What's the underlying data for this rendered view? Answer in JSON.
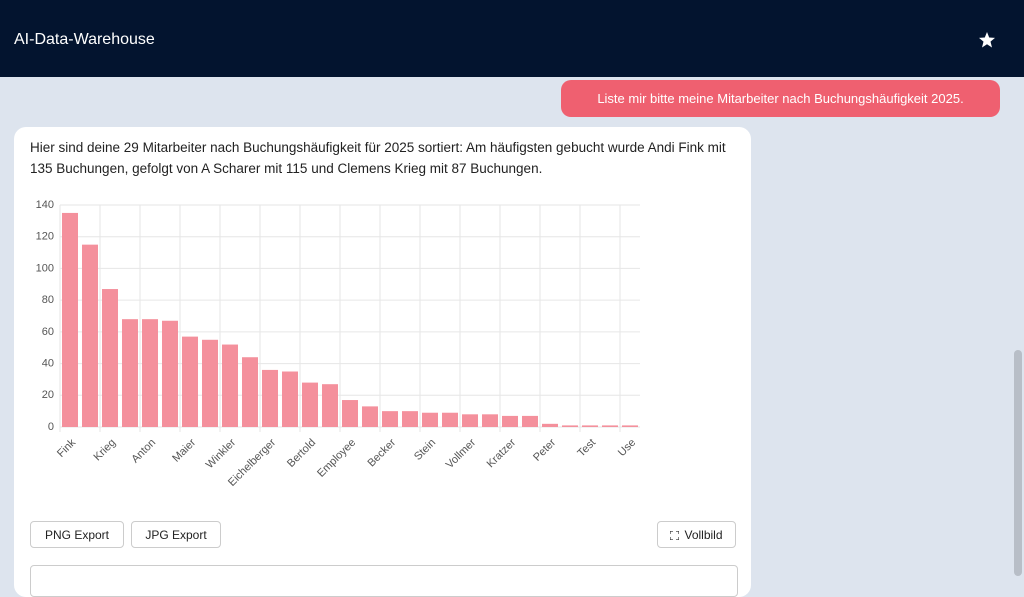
{
  "header": {
    "title": "AI-Data-Warehouse"
  },
  "messages": [
    {
      "role": "user",
      "text": "Liste mir bitte meine Mitarbeiter nach Buchungshäufigkeit 2025."
    },
    {
      "role": "assistant",
      "text": "Hier sind deine 29 Mitarbeiter nach Buchungshäufigkeit für 2025 sortiert: Am häufigsten gebucht wurde Andi Fink mit 135 Buchungen, gefolgt von A Scharer mit 115 und Clemens Krieg mit 87 Buchungen."
    }
  ],
  "buttons": [
    "PNG Export",
    "JPG Export",
    "Vollbild"
  ],
  "chart_data": {
    "type": "bar",
    "categories": [
      "Fink",
      null,
      "Krieg",
      null,
      "Anton",
      null,
      "Maier",
      null,
      "Winkler",
      null,
      "Eichelberger",
      null,
      "Bertold",
      null,
      "Employee",
      null,
      "Becker",
      null,
      "Stein",
      null,
      "Vollmer",
      null,
      "Kratzer",
      null,
      "Peter",
      null,
      "Test",
      null,
      "Use"
    ],
    "values": [
      135,
      115,
      87,
      68,
      68,
      67,
      57,
      55,
      52,
      44,
      36,
      35,
      28,
      27,
      17,
      13,
      10,
      10,
      9,
      9,
      8,
      8,
      7,
      7,
      2,
      1,
      1,
      1,
      1
    ],
    "color": "#f4909c",
    "ylim": [
      0,
      140
    ],
    "yticks": [
      0,
      20,
      40,
      60,
      80,
      100,
      120,
      140
    ],
    "grid": true
  }
}
